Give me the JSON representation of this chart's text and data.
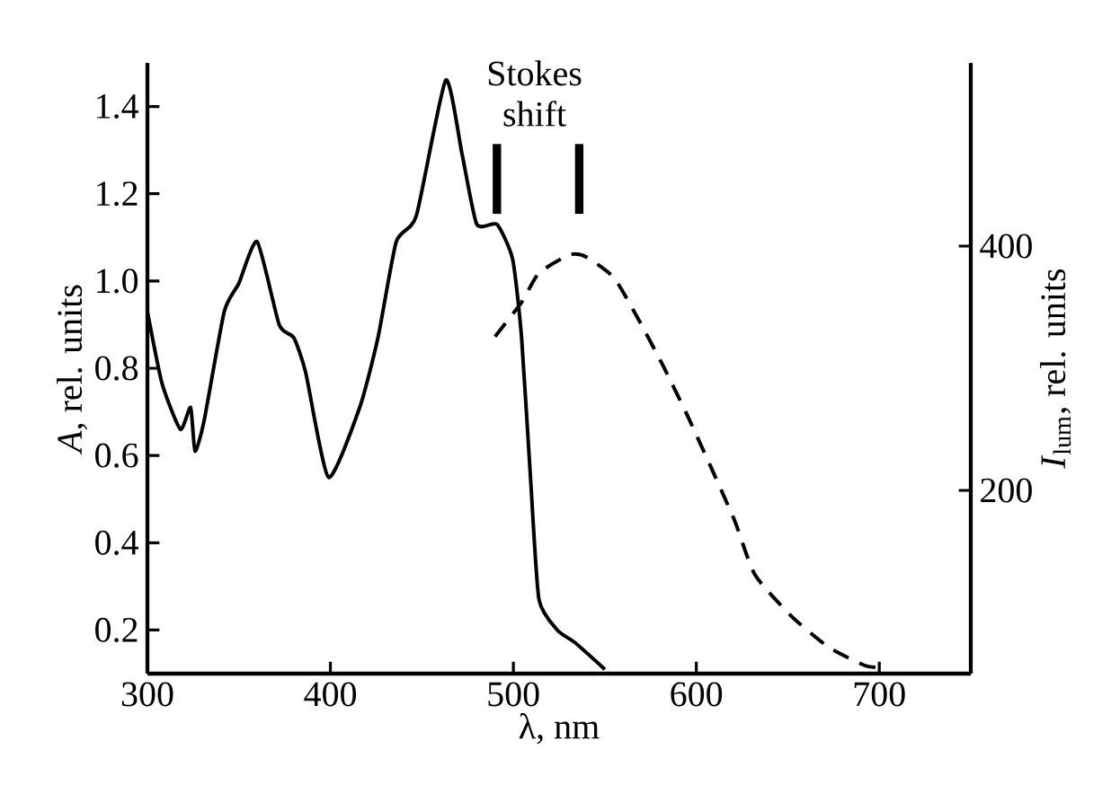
{
  "chart_data": {
    "type": "line",
    "xlabel": "λ, nm",
    "ylabel": "*A*, rel. units",
    "y2label": "*I*$_{lum}$, rel. units",
    "xlim": [
      300,
      750
    ],
    "xticks": [
      300,
      400,
      500,
      600,
      700
    ],
    "ylim": [
      0.1,
      1.5
    ],
    "yticks": [
      0.2,
      0.4,
      0.6,
      0.8,
      {
        "value": 1.0,
        "label": "1.0"
      },
      1.2,
      1.4
    ],
    "y2lim": [
      50,
      550
    ],
    "y2ticks": [
      200,
      400
    ],
    "series": [
      {
        "color": "#000000",
        "line_style": "solid",
        "x": [
          300,
          308,
          318,
          323.6,
          326,
          331,
          342,
          350,
          360,
          372,
          380,
          386.5,
          399,
          416,
          426,
          436,
          447,
          463,
          472,
          480,
          491,
          499.6,
          504.5,
          509.5,
          514,
          524,
          534,
          550
        ],
        "values": [
          0.93,
          0.765,
          0.66,
          0.71,
          0.61,
          0.68,
          0.93,
          0.995,
          1.09,
          0.9,
          0.87,
          0.79,
          0.55,
          0.71,
          0.87,
          1.09,
          1.15,
          1.46,
          1.29,
          1.13,
          1.13,
          1.05,
          0.87,
          0.54,
          0.27,
          0.2,
          0.17,
          0.11
        ]
      },
      {
        "color": "#000000",
        "line_style": "dashed",
        "axis": "y2",
        "x": [
          490,
          504.5,
          514,
          531,
          540,
          555,
          568,
          581.5,
          594.6,
          608,
          621,
          632,
          652,
          672,
          691.5,
          699
        ],
        "values": [
          326,
          354,
          378,
          393,
          391,
          374,
          341,
          303,
          263,
          219,
          175,
          131,
          97,
          72,
          57,
          55
        ]
      },
      {
        "color": "#000000",
        "line_style": "solid",
        "x": [
          491,
          491
        ],
        "values": [
          1.154,
          1.314
        ]
      },
      {
        "color": "#000000",
        "line_style": "solid",
        "x": [
          536,
          536
        ],
        "values": [
          1.154,
          1.314
        ]
      }
    ],
    "annotations": [
      "Stokes shift"
    ],
    "marker": "none"
  }
}
